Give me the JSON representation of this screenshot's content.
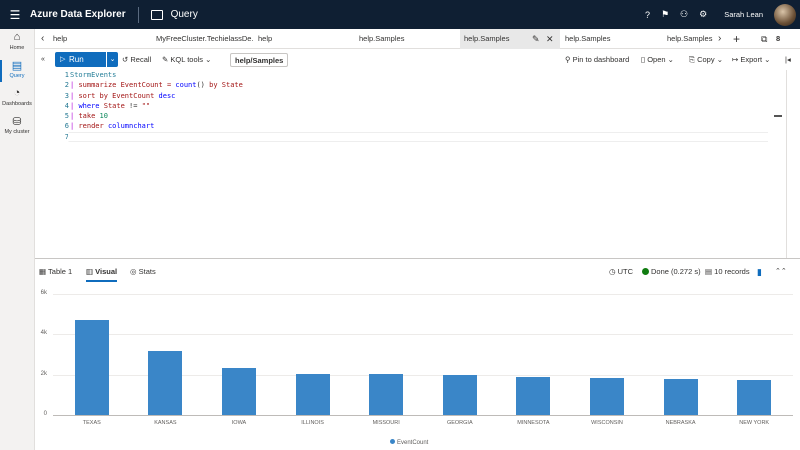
{
  "app": {
    "title": "Azure Data Explorer",
    "page": "Query",
    "user": "Sarah Lean"
  },
  "nav": [
    {
      "label": "Home",
      "icon": "home-icon"
    },
    {
      "label": "Query",
      "icon": "query-icon"
    },
    {
      "label": "Dashboards",
      "icon": "dashboard-icon"
    },
    {
      "label": "My cluster",
      "icon": "cluster-icon"
    }
  ],
  "tabs": {
    "items": [
      "help",
      "MyFreeCluster.TechielassDe...",
      "help",
      "help.Samples",
      "help.Samples",
      "help.Samples",
      "help.Samples"
    ],
    "active_index": 4,
    "count": "8"
  },
  "toolbar": {
    "run": "Run",
    "recall": "Recall",
    "kql_tools": "KQL tools",
    "database": "help/Samples",
    "pin": "Pin to dashboard",
    "open": "Open",
    "copy": "Copy",
    "export": "Export"
  },
  "editor": {
    "lines": [
      {
        "n": "1"
      },
      {
        "n": "2"
      },
      {
        "n": "3"
      },
      {
        "n": "4"
      },
      {
        "n": "5"
      },
      {
        "n": "6"
      },
      {
        "n": "7"
      }
    ],
    "code": {
      "l1": "StormEvents",
      "l2_pipe": "| ",
      "l2_kw": "summarize ",
      "l2_rest": "EventCount = ",
      "l2_fn": "count",
      "l2_paren": "() ",
      "l2_by": "by ",
      "l2_col": "State",
      "l3_kw": "sort by ",
      "l3_col": "EventCount ",
      "l3_desc": "desc",
      "l4_kw": "where ",
      "l4_col": "State ",
      "l4_op": "!= ",
      "l4_str": "\"\"",
      "l5_kw": "take ",
      "l5_num": "10",
      "l6_kw": "render ",
      "l6_type": "columnchart"
    }
  },
  "results": {
    "tabs": [
      "Table 1",
      "Visual",
      "Stats"
    ],
    "active": "Visual",
    "timezone": "UTC",
    "done": "Done (0.272 s)",
    "records": "10 records"
  },
  "chart_data": {
    "type": "bar",
    "categories": [
      "TEXAS",
      "KANSAS",
      "IOWA",
      "ILLINOIS",
      "MISSOURI",
      "GEORGIA",
      "MINNESOTA",
      "WISCONSIN",
      "NEBRASKA",
      "NEW YORK"
    ],
    "series": [
      {
        "name": "EventCount",
        "values": [
          4701,
          3166,
          2337,
          2022,
          2016,
          1983,
          1881,
          1850,
          1766,
          1750
        ]
      }
    ],
    "yticks": [
      "0",
      "2k",
      "4k",
      "6k"
    ],
    "ylim": [
      0,
      6000
    ],
    "legend": "bottom",
    "color": "#3a86c8"
  }
}
